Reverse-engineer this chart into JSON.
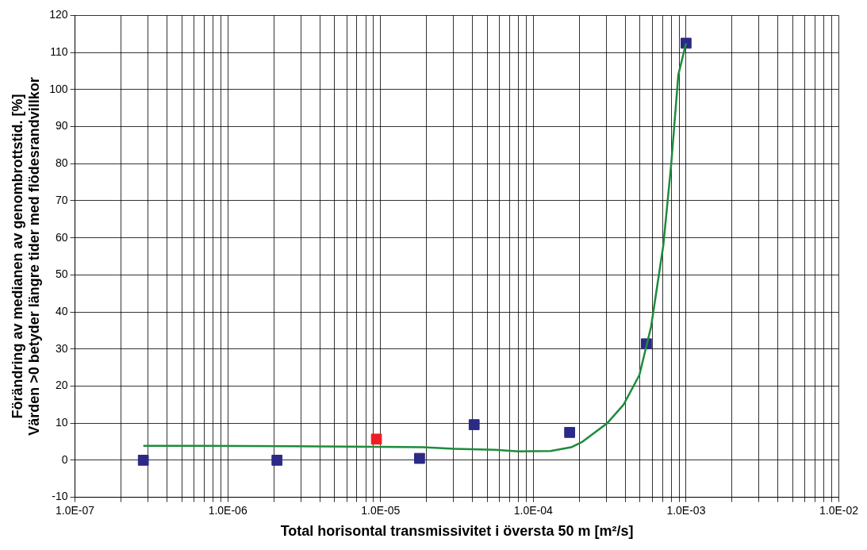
{
  "chart_data": {
    "type": "scatter",
    "xlabel": "Total horisontal transmissivitet i översta 50 m [m²/s]",
    "ylabel": "Förändring av medianen av genombrottstid. [%]\nVärden >0 betyder längre tider med flödesrandvillkor",
    "log": "x",
    "grid": true,
    "legend": false,
    "marker": "square",
    "xlim": [
      1e-07,
      0.01
    ],
    "ylim": [
      -10,
      120
    ],
    "xticks": [
      {
        "value": 1e-07,
        "label": "1.0E-07"
      },
      {
        "value": 2e-07,
        "label": null
      },
      {
        "value": 3e-07,
        "label": null
      },
      {
        "value": 4e-07,
        "label": null
      },
      {
        "value": 5e-07,
        "label": null
      },
      {
        "value": 6e-07,
        "label": null
      },
      {
        "value": 7e-07,
        "label": null
      },
      {
        "value": 8e-07,
        "label": null
      },
      {
        "value": 9e-07,
        "label": null
      },
      {
        "value": 1e-06,
        "label": "1.0E-06"
      },
      {
        "value": 2e-06,
        "label": null
      },
      {
        "value": 3e-06,
        "label": null
      },
      {
        "value": 4e-06,
        "label": null
      },
      {
        "value": 5e-06,
        "label": null
      },
      {
        "value": 6e-06,
        "label": null
      },
      {
        "value": 7e-06,
        "label": null
      },
      {
        "value": 8e-06,
        "label": null
      },
      {
        "value": 9e-06,
        "label": null
      },
      {
        "value": 1e-05,
        "label": "1.0E-05"
      },
      {
        "value": 2e-05,
        "label": null
      },
      {
        "value": 3e-05,
        "label": null
      },
      {
        "value": 4e-05,
        "label": null
      },
      {
        "value": 5e-05,
        "label": null
      },
      {
        "value": 6e-05,
        "label": null
      },
      {
        "value": 7e-05,
        "label": null
      },
      {
        "value": 8e-05,
        "label": null
      },
      {
        "value": 9e-05,
        "label": null
      },
      {
        "value": 0.0001,
        "label": "1.0E-04"
      },
      {
        "value": 0.0002,
        "label": null
      },
      {
        "value": 0.0003,
        "label": null
      },
      {
        "value": 0.0004,
        "label": null
      },
      {
        "value": 0.0005,
        "label": null
      },
      {
        "value": 0.0006,
        "label": null
      },
      {
        "value": 0.0007,
        "label": null
      },
      {
        "value": 0.0008,
        "label": null
      },
      {
        "value": 0.0009,
        "label": null
      },
      {
        "value": 0.001,
        "label": "1.0E-03"
      },
      {
        "value": 0.002,
        "label": null
      },
      {
        "value": 0.003,
        "label": null
      },
      {
        "value": 0.004,
        "label": null
      },
      {
        "value": 0.005,
        "label": null
      },
      {
        "value": 0.006,
        "label": null
      },
      {
        "value": 0.007,
        "label": null
      },
      {
        "value": 0.008,
        "label": null
      },
      {
        "value": 0.009,
        "label": null
      },
      {
        "value": 0.01,
        "label": "1.0E-02"
      }
    ],
    "yticks": [
      -10,
      0,
      10,
      20,
      30,
      40,
      50,
      60,
      70,
      80,
      90,
      100,
      110,
      120
    ],
    "series": [
      {
        "type": "line",
        "marker": "none",
        "color": "#1e8c3c",
        "x": [
          2.8e-07,
          2.7e-06,
          1.9e-05,
          3.05e-05,
          5.6e-05,
          8e-05,
          0.00013,
          0.000177,
          0.00021,
          0.000305,
          0.00039,
          0.000495,
          0.00059,
          0.00071,
          0.0008,
          0.00089,
          0.001
        ],
        "values": [
          3.9,
          3.8,
          3.5,
          3.1,
          2.8,
          2.4,
          2.5,
          3.5,
          5,
          10,
          15,
          23,
          36,
          58,
          80,
          104,
          112.5
        ]
      },
      {
        "colors": [
          "#2b2a86",
          "#2b2a86",
          "#ee1c25",
          "#2b2a86",
          "#2b2a86",
          "#2b2a86",
          "#2b2a86",
          "#2b2a86"
        ],
        "x": [
          2.8e-07,
          2.1e-06,
          9.4e-06,
          1.8e-05,
          4.1e-05,
          0.000173,
          0.00055,
          0.001
        ],
        "values": [
          0,
          0,
          5.7,
          0.5,
          9.6,
          7.5,
          31.4,
          112.5
        ]
      }
    ]
  }
}
